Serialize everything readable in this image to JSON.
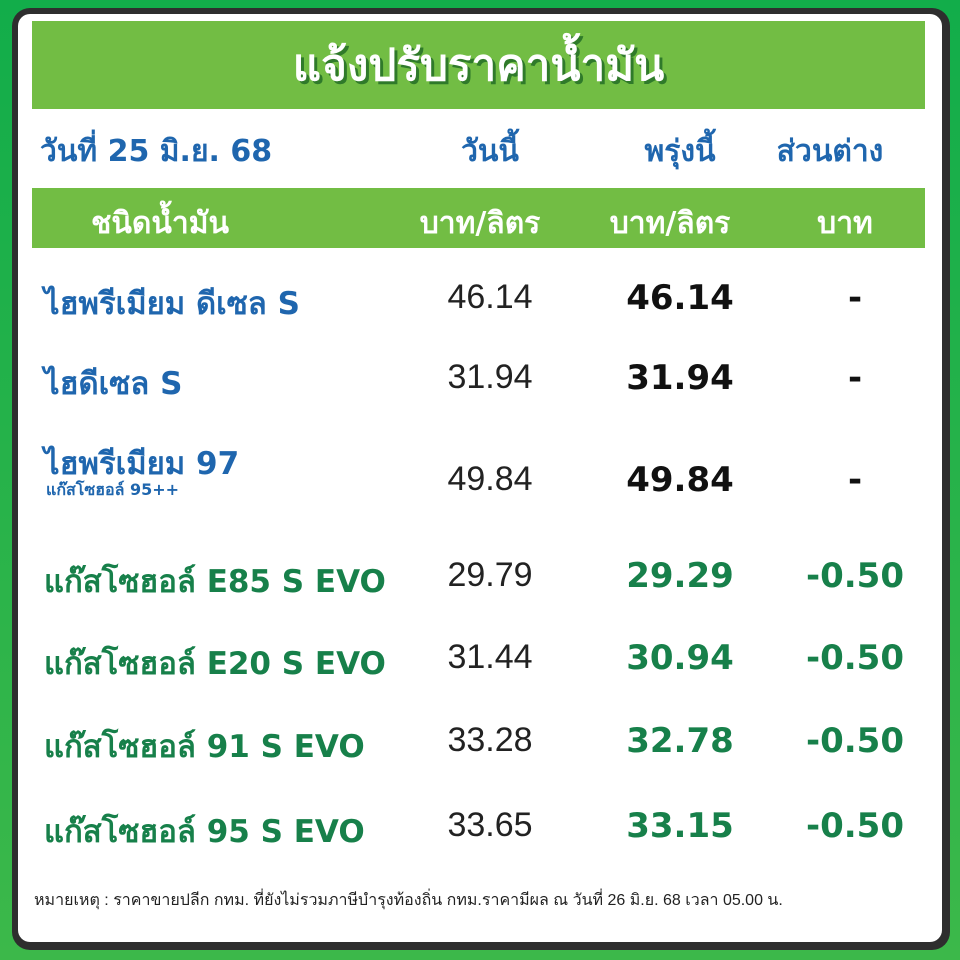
{
  "title": "แจ้งปรับราคาน้ำมัน",
  "date": "วันที่ 25 มิ.ย. 68",
  "col_today": "วันนี้",
  "col_tomorrow": "พรุ่งนี้",
  "col_diff": "ส่วนต่าง",
  "head_type": "ชนิดน้ำมัน",
  "unit_today": "บาท/ลิตร",
  "unit_tomorrow": "บาท/ลิตร",
  "unit_diff": "บาท",
  "colors": {
    "background": "#12ad4a",
    "band": "#72bd44",
    "blue": "#1f66ae",
    "green_text": "#17804a",
    "black": "#111111"
  },
  "rows": [
    {
      "name": "ไฮพรีเมียม ดีเซล S",
      "today": "46.14",
      "tomorrow": "46.14",
      "diff": "-"
    },
    {
      "name": "ไฮดีเซล S",
      "today": "31.94",
      "tomorrow": "31.94",
      "diff": "-"
    },
    {
      "name": "ไฮพรีเมียม 97",
      "subname": "แก๊สโซฮอล์ 95++",
      "today": "49.84",
      "tomorrow": "49.84",
      "diff": "-"
    },
    {
      "name": "แก๊สโซฮอล์ E85 S EVO",
      "today": "29.79",
      "tomorrow": "29.29",
      "diff": "-0.50"
    },
    {
      "name": "แก๊สโซฮอล์ E20 S EVO",
      "today": "31.44",
      "tomorrow": "30.94",
      "diff": "-0.50"
    },
    {
      "name": "แก๊สโซฮอล์ 91 S EVO",
      "today": "33.28",
      "tomorrow": "32.78",
      "diff": "-0.50"
    },
    {
      "name": "แก๊สโซฮอล์ 95 S EVO",
      "today": "33.65",
      "tomorrow": "33.15",
      "diff": "-0.50"
    }
  ],
  "note": "หมายเหตุ :  ราคาขายปลีก กทม. ที่ยังไม่รวมภาษีบำรุงท้องถิ่น  กทม.ราคามีผล ณ วันที่ 26 มิ.ย. 68 เวลา 05.00 น."
}
